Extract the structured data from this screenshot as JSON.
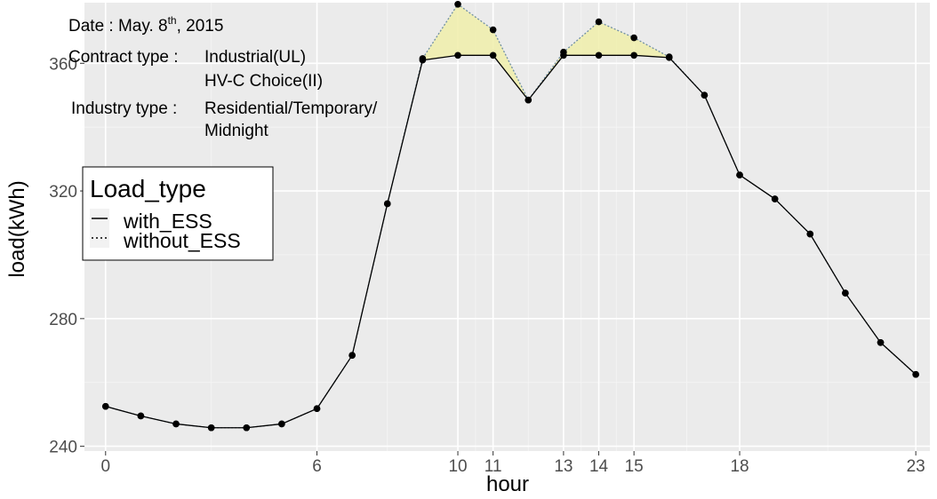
{
  "annotations": {
    "date_label": "Date : May. 8",
    "date_sup": "th",
    "date_year": ", 2015",
    "contract_label": "Contract type :",
    "contract_line1": "Industrial(UL)",
    "contract_line2": "HV-C Choice(II)",
    "industry_label": "Industry type :",
    "industry_line1": "Residential/Temporary/",
    "industry_line2": "Midnight"
  },
  "chart_data": {
    "type": "line",
    "xlabel": "hour",
    "ylabel": "load(kWh)",
    "xlim": [
      -0.6,
      23.4
    ],
    "ylim": [
      238.5,
      379
    ],
    "xticks": [
      0,
      6,
      10,
      11,
      13,
      14,
      15,
      18,
      23
    ],
    "yticks": [
      240,
      280,
      320,
      360
    ],
    "grid": true,
    "legend": {
      "title": "Load_type",
      "placement": "left",
      "entries": [
        {
          "label": "with_ESS",
          "linestyle": "solid"
        },
        {
          "label": "without_ESS",
          "linestyle": "dotted"
        }
      ]
    },
    "x": [
      0,
      1,
      2,
      3,
      4,
      5,
      6,
      7,
      8,
      9,
      10,
      11,
      12,
      13,
      14,
      15,
      16,
      17,
      18,
      19,
      20,
      21,
      22,
      23
    ],
    "series": [
      {
        "name": "with_ESS",
        "linestyle": "solid",
        "values": [
          252.5,
          249.5,
          247,
          245.8,
          245.8,
          247,
          251.8,
          268.5,
          316,
          361,
          362.5,
          362.5,
          348.5,
          362.5,
          362.5,
          362.5,
          361.8,
          350,
          325,
          317.5,
          306.5,
          288,
          272.5,
          262.5
        ]
      },
      {
        "name": "without_ESS",
        "linestyle": "dotted",
        "values": [
          252.5,
          249.5,
          247,
          245.8,
          245.8,
          247,
          251.8,
          268.5,
          316,
          361.5,
          378.5,
          370.5,
          348.5,
          363.5,
          373,
          368,
          362,
          350,
          325,
          317.5,
          306.5,
          288,
          272.5,
          262.5
        ]
      }
    ],
    "fill_between": {
      "color": "#f0eeaa",
      "edge_color": "#6f8fa3"
    }
  },
  "colors": {
    "panel_bg": "#ebebeb",
    "grid_major": "#ffffff",
    "grid_minor": "#f5f5f5",
    "line": "#000000",
    "fill": "#f0eeaa"
  }
}
